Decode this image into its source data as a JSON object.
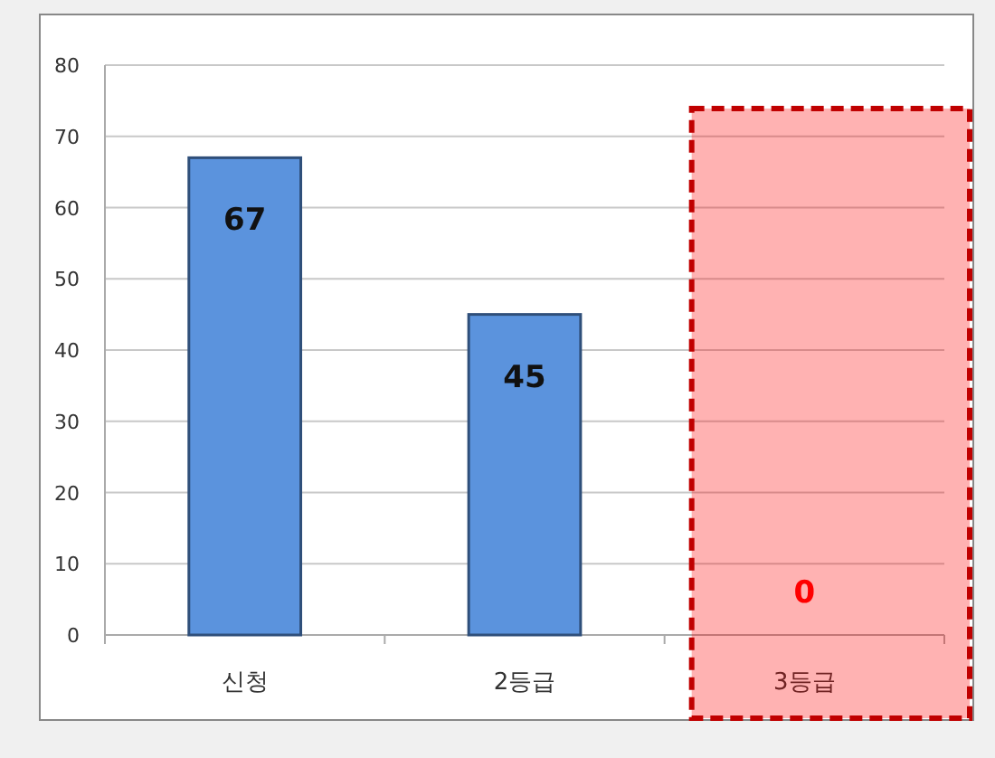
{
  "chart_data": {
    "type": "bar",
    "categories": [
      "신청",
      "2등급",
      "3등급"
    ],
    "values": [
      67,
      45,
      0
    ],
    "color": "#5b93dd",
    "data_labels": true,
    "ylim": [
      0,
      80
    ],
    "yticks": [
      0,
      10,
      20,
      30,
      40,
      50,
      60,
      70,
      80
    ],
    "grid": "y",
    "bands": [
      {
        "axis": "x",
        "from": "3등급",
        "to": "3등급",
        "color": "#ff0000"
      }
    ]
  }
}
